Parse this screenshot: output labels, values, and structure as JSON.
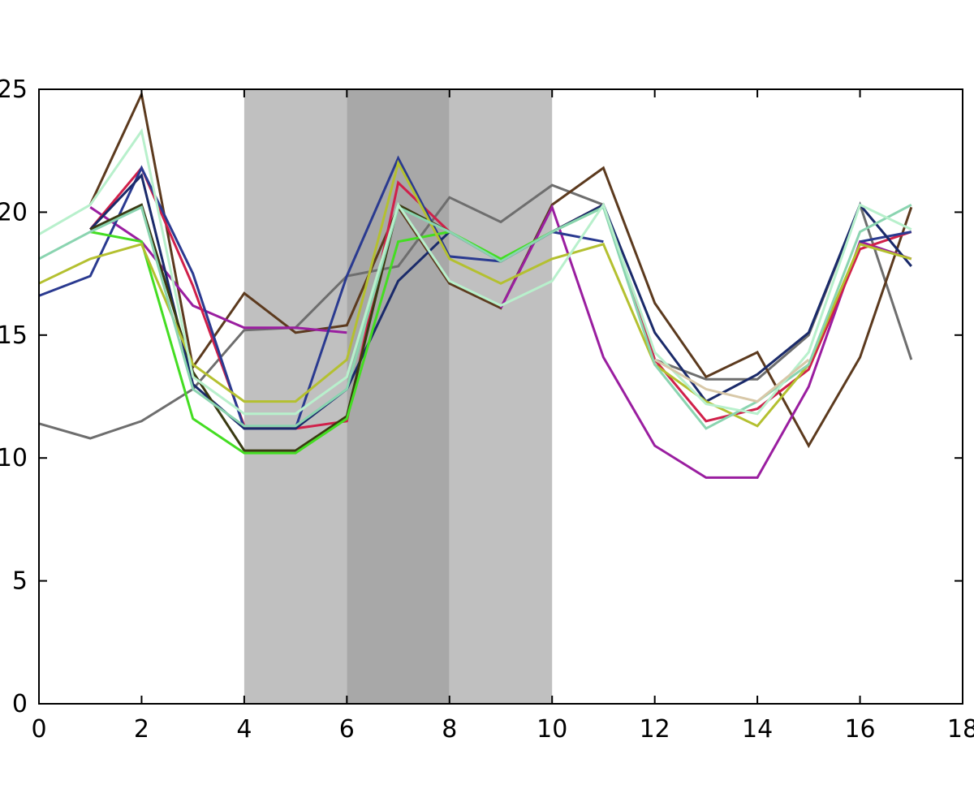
{
  "chart_data": {
    "type": "line",
    "title": "",
    "xlabel": "",
    "ylabel": "",
    "xlim": [
      0,
      18
    ],
    "ylim": [
      0,
      25
    ],
    "xticks": [
      "0",
      "2",
      "4",
      "6",
      "8",
      "10",
      "12",
      "14",
      "16",
      "18"
    ],
    "yticks": [
      "0",
      "5",
      "10",
      "15",
      "20",
      "25"
    ],
    "grid": false,
    "legend": "none",
    "shaded_regions": [
      {
        "x_start": 4,
        "x_end": 6,
        "color": "#c0c0c0"
      },
      {
        "x_start": 6,
        "x_end": 8,
        "color": "#a8a8a8"
      },
      {
        "x_start": 8,
        "x_end": 10,
        "color": "#c0c0c0"
      }
    ],
    "x": [
      0,
      1,
      2,
      3,
      4,
      5,
      6,
      7,
      8,
      9,
      10,
      11,
      12,
      13,
      14,
      15,
      16,
      17
    ],
    "series": [
      {
        "color": "#6e6e6e",
        "values": [
          11.4,
          10.8,
          11.5,
          12.8,
          15.2,
          15.3,
          17.4,
          17.8,
          20.6,
          19.6,
          21.1,
          20.3,
          14.0,
          13.2,
          13.2,
          15.0,
          20.3,
          14.0
        ]
      },
      {
        "color": "#5c3a1e",
        "values": [
          null,
          20.3,
          24.8,
          13.7,
          16.7,
          15.1,
          15.4,
          20.2,
          17.1,
          16.1,
          20.3,
          21.8,
          16.3,
          13.3,
          14.3,
          10.5,
          14.1,
          20.2
        ]
      },
      {
        "color": "#9a1ea0",
        "values": [
          null,
          20.2,
          18.8,
          16.2,
          15.3,
          15.3,
          15.1,
          null,
          null,
          16.1,
          20.2,
          14.1,
          10.5,
          9.2,
          9.2,
          12.9,
          18.8,
          18.1
        ]
      },
      {
        "color": "#d0204a",
        "values": [
          null,
          19.3,
          21.8,
          17.0,
          11.3,
          11.2,
          11.5,
          21.2,
          19.2,
          18.0,
          19.2,
          20.3,
          14.0,
          11.5,
          12.0,
          13.6,
          18.5,
          19.2
        ]
      },
      {
        "color": "#2a3a90",
        "values": [
          16.6,
          17.4,
          21.8,
          17.5,
          11.2,
          11.2,
          17.4,
          22.2,
          18.2,
          18.0,
          19.2,
          18.8,
          null,
          null,
          null,
          null,
          18.8,
          19.2
        ]
      },
      {
        "color": "#1a2a6a",
        "values": [
          null,
          19.3,
          21.5,
          13.0,
          11.2,
          11.2,
          12.8,
          17.2,
          19.2,
          18.0,
          19.2,
          20.3,
          15.1,
          12.3,
          13.4,
          15.1,
          20.3,
          17.8
        ]
      },
      {
        "color": "#3a3a12",
        "values": [
          null,
          19.3,
          20.3,
          13.5,
          10.3,
          10.3,
          11.7,
          20.3,
          19.2,
          null,
          null,
          null,
          null,
          null,
          null,
          null,
          null,
          null
        ]
      },
      {
        "color": "#44dd22",
        "values": [
          null,
          19.2,
          18.8,
          11.6,
          10.2,
          10.2,
          11.6,
          18.8,
          19.2,
          18.1,
          19.2,
          20.2,
          null,
          null,
          null,
          null,
          null,
          null
        ]
      },
      {
        "color": "#b4c030",
        "values": [
          17.1,
          18.1,
          18.7,
          13.8,
          12.3,
          12.3,
          14.0,
          22.0,
          18.1,
          17.1,
          18.1,
          18.7,
          13.8,
          12.3,
          11.3,
          13.8,
          18.7,
          18.1
        ]
      },
      {
        "color": "#8ad4b0",
        "values": [
          18.1,
          19.2,
          20.2,
          12.8,
          11.3,
          11.3,
          12.8,
          20.2,
          19.2,
          18.0,
          19.2,
          20.2,
          13.8,
          11.2,
          12.3,
          13.8,
          19.2,
          20.3
        ]
      },
      {
        "color": "#b8f0cc",
        "values": [
          19.1,
          20.3,
          23.3,
          13.3,
          11.8,
          11.8,
          13.3,
          20.3,
          17.2,
          16.2,
          17.2,
          20.3,
          14.3,
          12.2,
          11.8,
          14.3,
          20.3,
          19.3
        ]
      },
      {
        "color": "#d8c8a8",
        "values": [
          null,
          null,
          null,
          null,
          null,
          null,
          null,
          null,
          null,
          null,
          null,
          null,
          14.0,
          12.8,
          12.3,
          14.0,
          null,
          null
        ]
      }
    ]
  }
}
